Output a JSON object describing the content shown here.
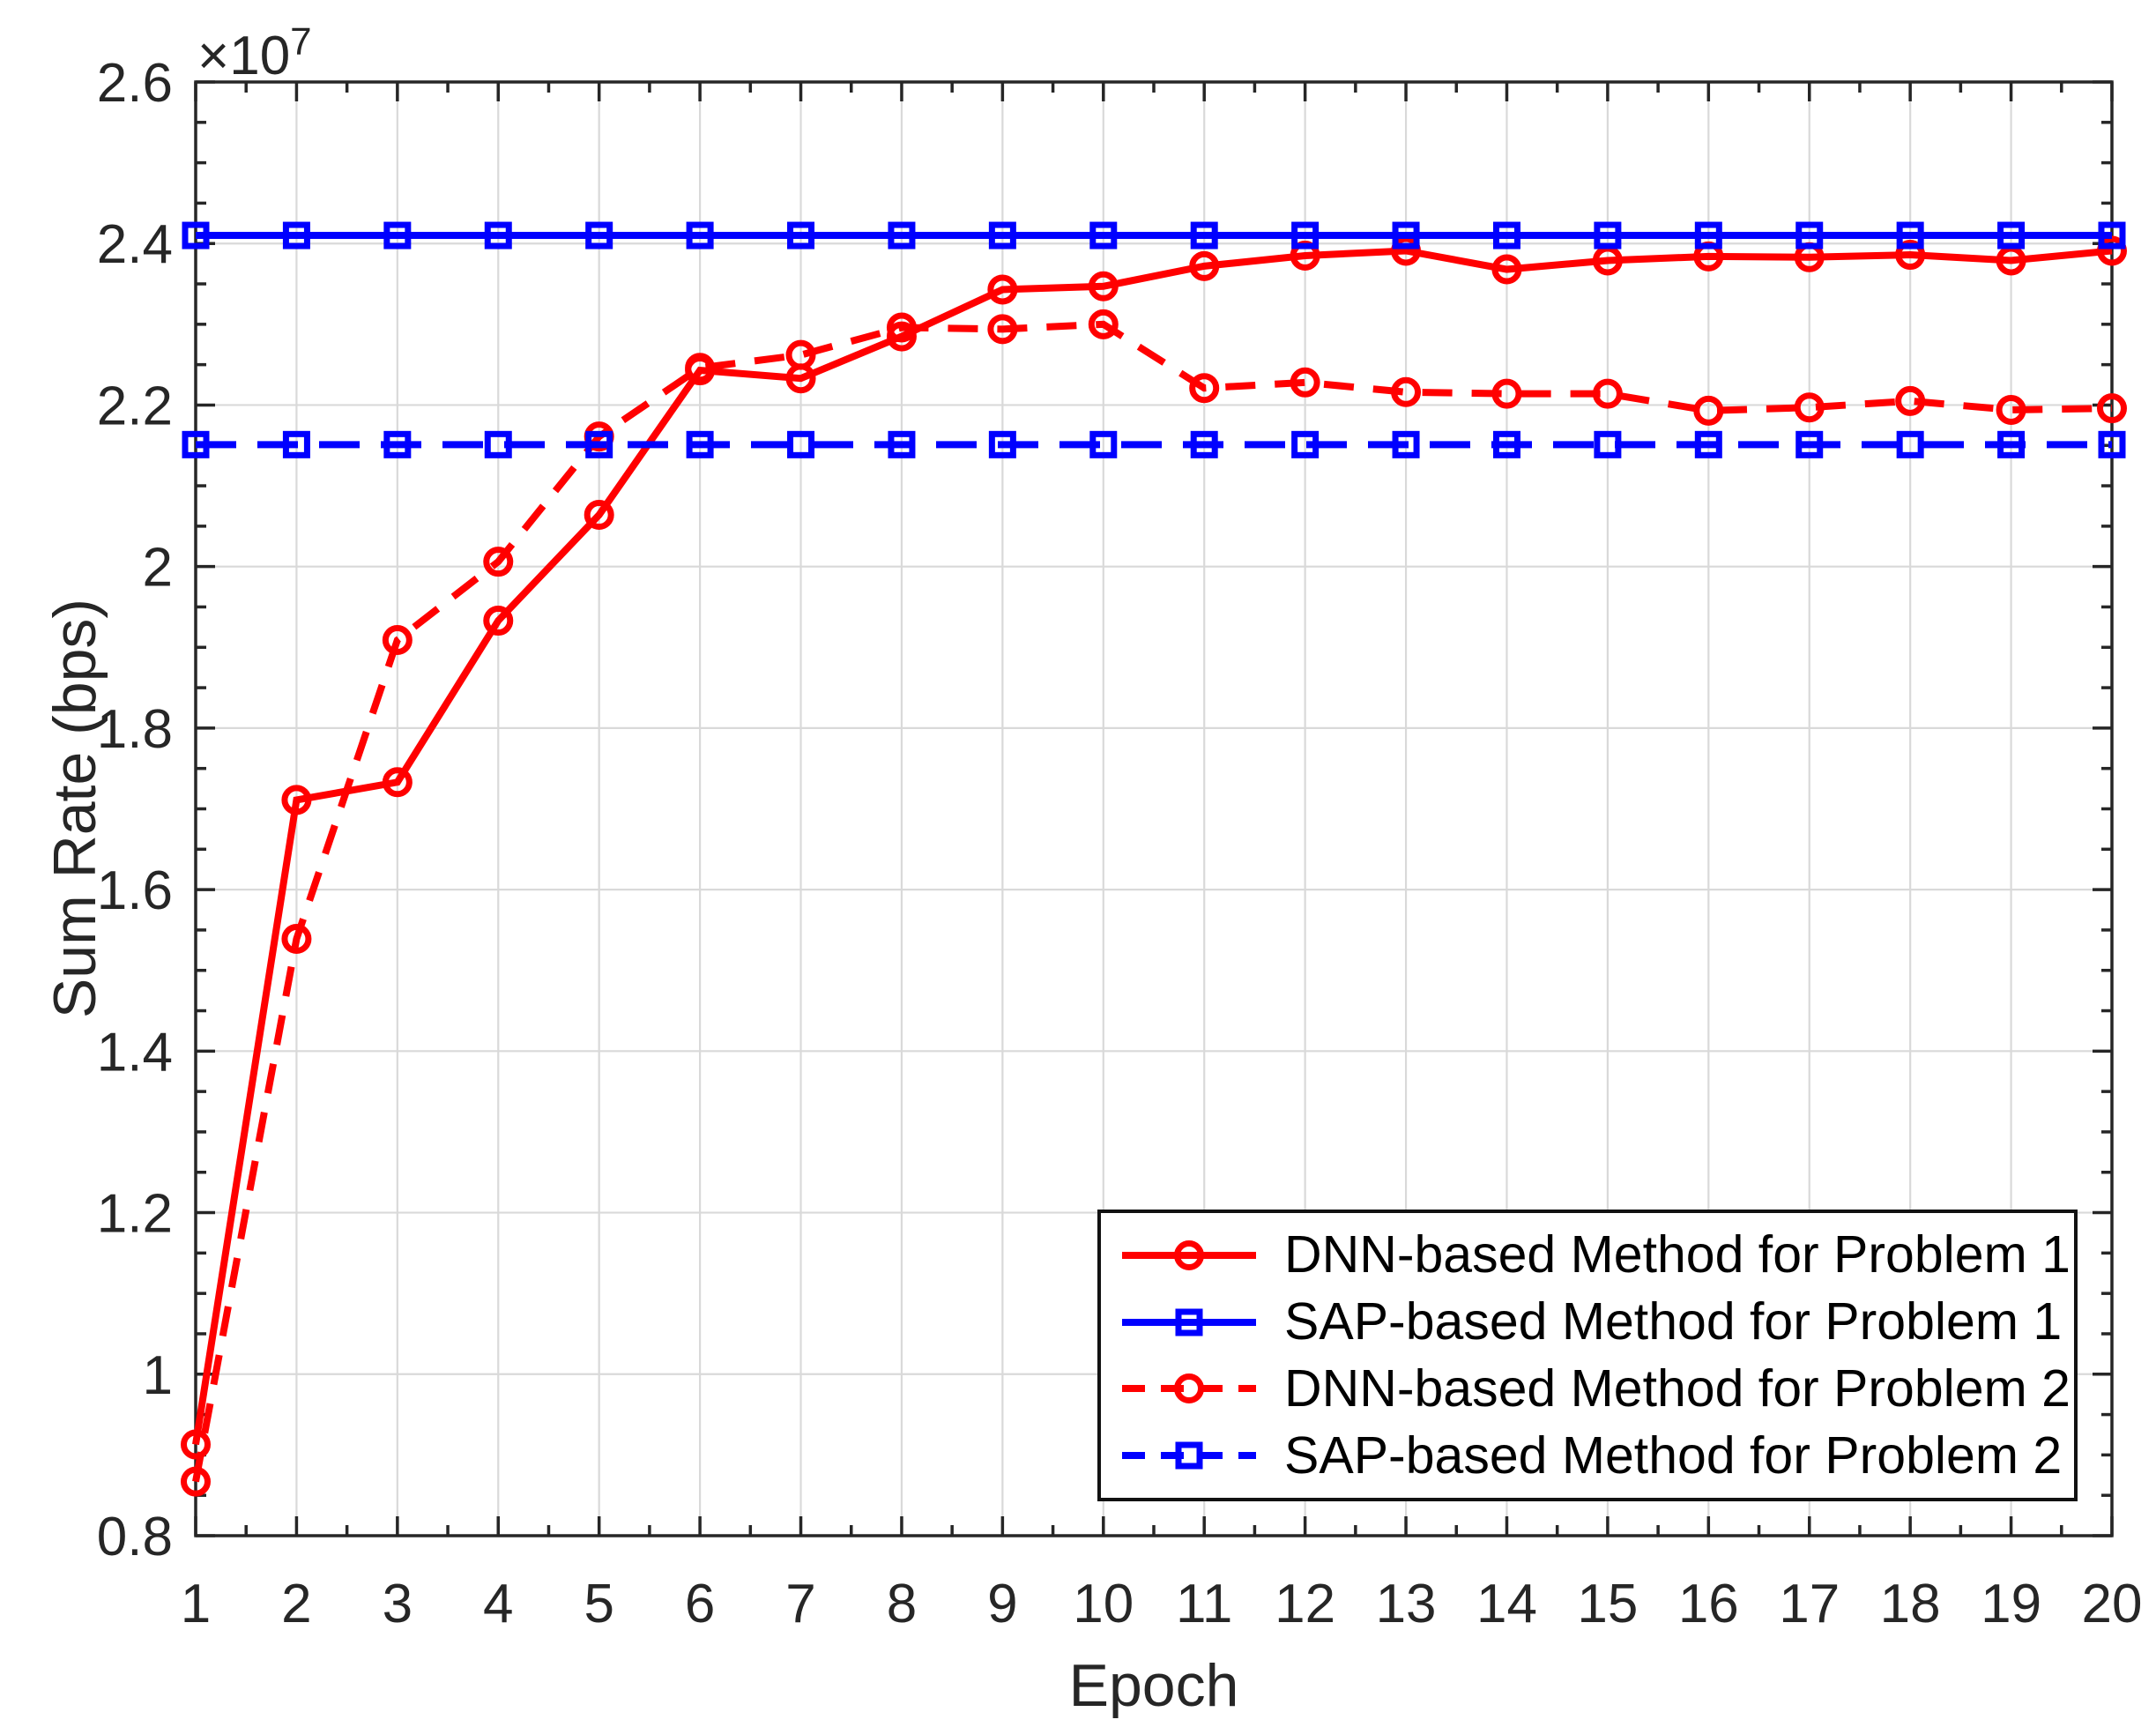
{
  "figure": {
    "background": "#ffffff",
    "axes_color": "#262626",
    "grid_color": "#d9d9d9",
    "y_offset_label": "×10",
    "y_offset_exponent": "7"
  },
  "chart_data": {
    "type": "line",
    "title": "",
    "xlabel": "Epoch",
    "ylabel": "Sum Rate (bps)",
    "y_unit_multiplier": 10000000,
    "y_offset_text": "×10^7",
    "grid": true,
    "legend_position": "inside-lower-right",
    "xlim": [
      1,
      20
    ],
    "ylim_e7": [
      0.8,
      2.6
    ],
    "x": [
      1,
      2,
      3,
      4,
      5,
      6,
      7,
      8,
      9,
      10,
      11,
      12,
      13,
      14,
      15,
      16,
      17,
      18,
      19,
      20
    ],
    "x_major_ticks": [
      1,
      2,
      3,
      4,
      5,
      6,
      7,
      8,
      9,
      10,
      11,
      12,
      13,
      14,
      15,
      16,
      17,
      18,
      19,
      20
    ],
    "x_tick_labels": [
      "1",
      "2",
      "3",
      "4",
      "5",
      "6",
      "7",
      "8",
      "9",
      "10",
      "11",
      "12",
      "13",
      "14",
      "15",
      "16",
      "17",
      "18",
      "19",
      "20"
    ],
    "x_minor_step": 0.5,
    "y_major_ticks_e7": [
      0.8,
      1.0,
      1.2,
      1.4,
      1.6,
      1.8,
      2.0,
      2.2,
      2.4,
      2.6
    ],
    "y_tick_labels": [
      "0.8",
      "1",
      "1.2",
      "1.4",
      "1.6",
      "1.8",
      "2",
      "2.2",
      "2.4",
      "2.6"
    ],
    "y_minor_step_e7": 0.05,
    "series": [
      {
        "name": "DNN-based Method for Problem 1",
        "color": "#FF0000",
        "style": "solid",
        "marker": "circle",
        "values_e7": [
          0.913,
          1.711,
          1.733,
          1.933,
          2.064,
          2.243,
          2.233,
          2.285,
          2.343,
          2.347,
          2.372,
          2.385,
          2.391,
          2.368,
          2.379,
          2.384,
          2.383,
          2.386,
          2.379,
          2.391
        ]
      },
      {
        "name": "SAP-based Method for Problem 1",
        "color": "#0000FF",
        "style": "solid",
        "marker": "square",
        "values_e7": [
          2.41,
          2.41,
          2.41,
          2.41,
          2.41,
          2.41,
          2.41,
          2.41,
          2.41,
          2.41,
          2.41,
          2.41,
          2.41,
          2.41,
          2.41,
          2.41,
          2.41,
          2.41,
          2.41,
          2.41
        ]
      },
      {
        "name": "DNN-based Method for Problem 2",
        "color": "#FF0000",
        "style": "dashed",
        "marker": "circle",
        "values_e7": [
          0.867,
          1.539,
          1.909,
          2.006,
          2.161,
          2.246,
          2.262,
          2.296,
          2.294,
          2.3,
          2.221,
          2.228,
          2.216,
          2.214,
          2.214,
          2.193,
          2.197,
          2.205,
          2.194,
          2.196
        ]
      },
      {
        "name": "SAP-based Method for Problem 2",
        "color": "#0000FF",
        "style": "dashed",
        "marker": "square",
        "values_e7": [
          2.151,
          2.151,
          2.151,
          2.151,
          2.151,
          2.151,
          2.151,
          2.151,
          2.151,
          2.151,
          2.151,
          2.151,
          2.151,
          2.151,
          2.151,
          2.151,
          2.151,
          2.151,
          2.151,
          2.151
        ]
      }
    ]
  }
}
